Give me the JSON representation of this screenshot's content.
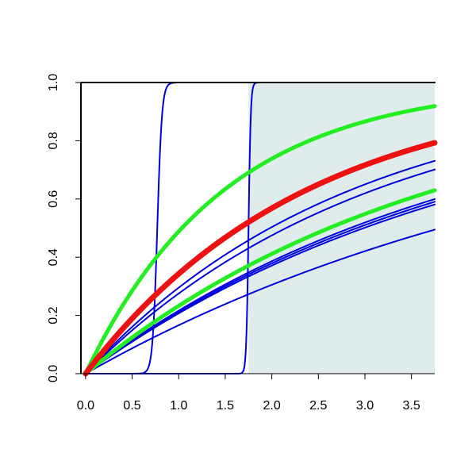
{
  "chart_data": {
    "type": "line",
    "title": "",
    "xlabel": "",
    "ylabel": "",
    "xlim": [
      -0.05,
      3.75
    ],
    "ylim": [
      0.0,
      1.0
    ],
    "x_ticks": [
      0.0,
      0.5,
      1.0,
      1.5,
      2.0,
      2.5,
      3.0,
      3.5
    ],
    "x_tick_labels": [
      "0.0",
      "0.5",
      "1.0",
      "1.5",
      "2.0",
      "2.5",
      "3.0",
      "3.5"
    ],
    "y_ticks": [
      0.0,
      0.2,
      0.4,
      0.6,
      0.8,
      1.0
    ],
    "y_tick_labels": [
      "0.0",
      "0.2",
      "0.4",
      "0.6",
      "0.8",
      "1.0"
    ],
    "grid": false,
    "legend": "none",
    "shaded_region": {
      "x_from": 1.75,
      "x_to": 3.75,
      "color": "#e0ecec"
    },
    "series": [
      {
        "kind": "exp",
        "rate": 0.665,
        "color": "#0000dd",
        "style": "thin"
      },
      {
        "kind": "exp",
        "rate": 0.422,
        "color": "#0000dd",
        "style": "thin"
      },
      {
        "kind": "exp",
        "rate": 0.35,
        "color": "#0000dd",
        "style": "thin"
      },
      {
        "kind": "exp",
        "rate": 0.322,
        "color": "#0000dd",
        "style": "thin"
      },
      {
        "kind": "exp",
        "rate": 0.244,
        "color": "#0000dd",
        "style": "thin"
      },
      {
        "kind": "exp",
        "rate": 0.238,
        "color": "#0000dd",
        "style": "thin"
      },
      {
        "kind": "exp",
        "rate": 0.232,
        "color": "#0000dd",
        "style": "thin"
      },
      {
        "kind": "exp",
        "rate": 0.182,
        "color": "#0000dd",
        "style": "thin"
      },
      {
        "kind": "step",
        "center": 0.77,
        "width": 0.025,
        "color": "#0000dd",
        "style": "thin"
      },
      {
        "kind": "step",
        "center": 1.75,
        "width": 0.012,
        "color": "#0000dd",
        "style": "thin"
      },
      {
        "kind": "exp",
        "rate": 0.67,
        "color": "#22ee22",
        "style": "thick"
      },
      {
        "kind": "exp",
        "rate": 0.265,
        "color": "#22ee22",
        "style": "thick"
      },
      {
        "kind": "exp",
        "rate": 0.42,
        "color": "#ee1111",
        "style": "thicker"
      }
    ]
  }
}
